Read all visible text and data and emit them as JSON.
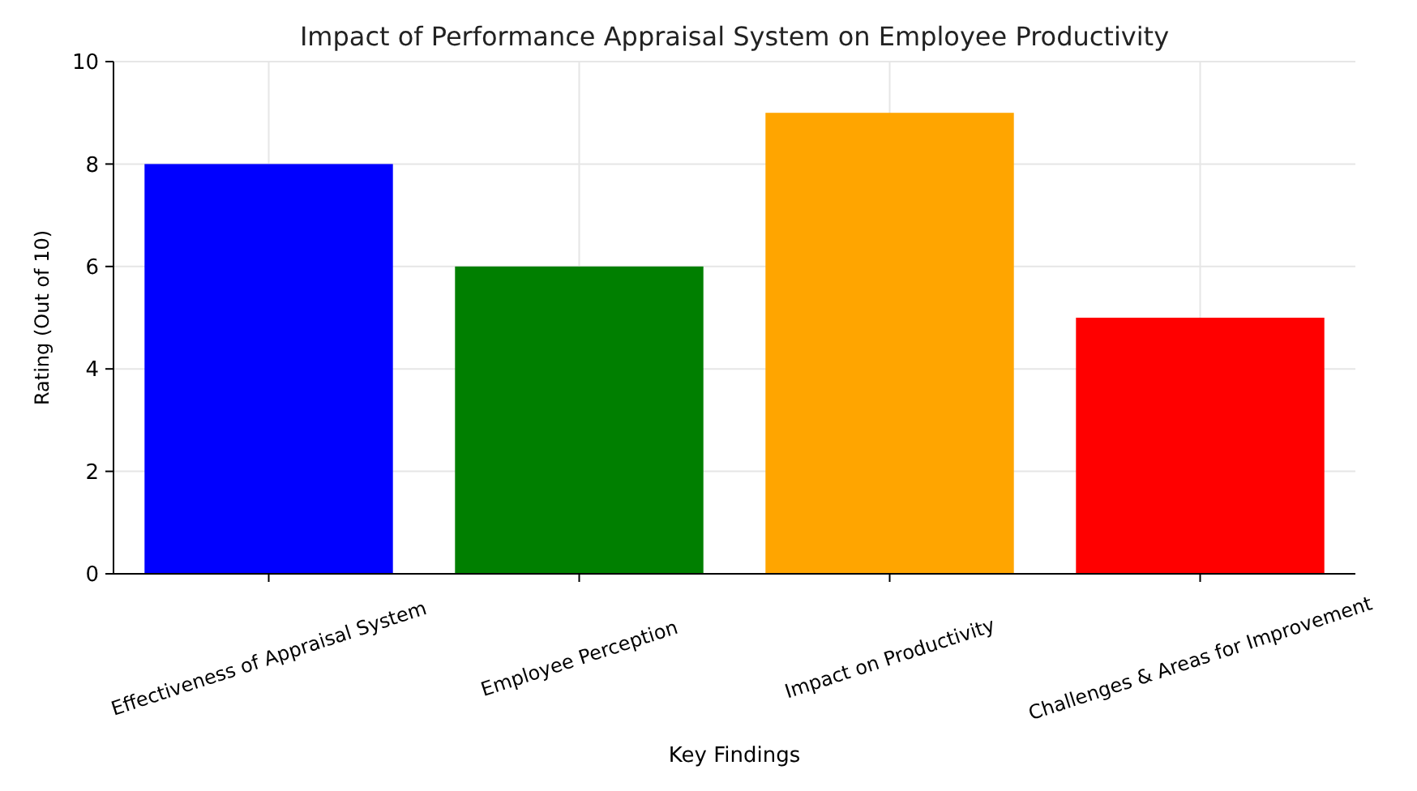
{
  "chart_data": {
    "type": "bar",
    "title": "Impact of Performance Appraisal System on Employee Productivity",
    "xlabel": "Key Findings",
    "ylabel": "Rating (Out of 10)",
    "categories": [
      "Effectiveness of Appraisal System",
      "Employee Perception",
      "Impact on Productivity",
      "Challenges & Areas for Improvement"
    ],
    "values": [
      8,
      6,
      9,
      5
    ],
    "colors": [
      "#0000ff",
      "#007f00",
      "#ffa500",
      "#ff0000"
    ],
    "ylim": [
      0,
      10
    ],
    "yticks": [
      0,
      2,
      4,
      6,
      8,
      10
    ],
    "grid": true
  }
}
